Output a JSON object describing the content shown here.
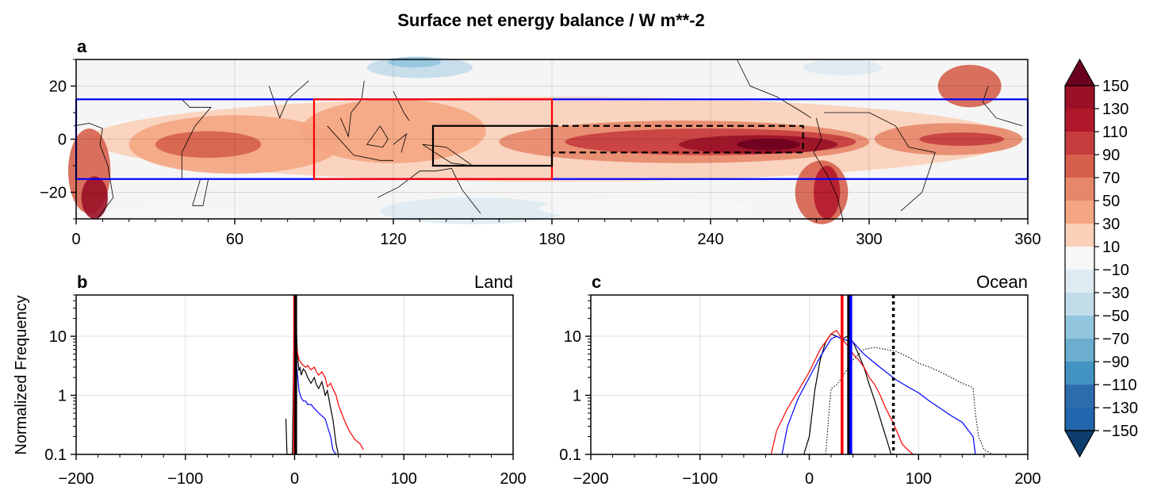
{
  "figure": {
    "title": "Surface net energy balance / W m**-2"
  },
  "chart_data": [
    {
      "panel": "a",
      "type": "heatmap",
      "xlim": [
        0,
        360
      ],
      "ylim": [
        -30,
        30
      ],
      "xticks": [
        0,
        60,
        120,
        180,
        240,
        300,
        360
      ],
      "xtick_labels": [
        "0",
        "60",
        "120",
        "180",
        "240",
        "300",
        "360"
      ],
      "yticks": [
        20,
        0,
        -20
      ],
      "ytick_labels": [
        "20",
        "0",
        "−20"
      ],
      "boxes": [
        {
          "name": "tropical-band",
          "lon": [
            0,
            360
          ],
          "lat": [
            -15,
            15
          ],
          "color": "#0000ff",
          "style": "solid"
        },
        {
          "name": "warm-pool",
          "lon": [
            90,
            180
          ],
          "lat": [
            -15,
            15
          ],
          "color": "#ff0000",
          "style": "solid"
        },
        {
          "name": "west-box",
          "lon": [
            135,
            180
          ],
          "lat": [
            -10,
            5
          ],
          "color": "#000000",
          "style": "solid"
        },
        {
          "name": "east-box",
          "lon": [
            180,
            275
          ],
          "lat": [
            -5,
            5
          ],
          "color": "#000000",
          "style": "dashed"
        }
      ],
      "field_features": [
        {
          "lon": 260,
          "lat": -2,
          "value": 150
        },
        {
          "lon": 330,
          "lat": 0,
          "value": 90
        },
        {
          "lon": 50,
          "lat": -2,
          "value": 70
        },
        {
          "lon": 5,
          "lat": -10,
          "value": 110
        },
        {
          "lon": 150,
          "lat": -25,
          "value": -30
        },
        {
          "lon": 130,
          "lat": 28,
          "value": -70
        }
      ]
    },
    {
      "panel": "b",
      "subtitle": "Land",
      "type": "line",
      "xlim": [
        -200,
        200
      ],
      "ylim": [
        0.1,
        50
      ],
      "yscale": "log",
      "xticks": [
        -200,
        -100,
        0,
        100,
        200
      ],
      "xtick_labels": [
        "−200",
        "−100",
        "0",
        "100",
        "200"
      ],
      "yticks": [
        10,
        1,
        0.1
      ],
      "ytick_labels": [
        "10",
        "1",
        "0.1"
      ],
      "ylabel": "Normalized Frequency",
      "series": [
        {
          "name": "black",
          "color": "#000000",
          "x": [
            -8,
            -7,
            -2,
            0,
            1,
            2,
            3,
            4,
            5,
            6,
            8,
            10,
            12,
            15,
            18,
            20,
            22,
            25,
            28,
            30,
            33,
            35,
            38,
            40
          ],
          "y": [
            0.4,
            0.1,
            0.1,
            50,
            30,
            8,
            4,
            2.6,
            3,
            2.2,
            2.8,
            2.5,
            2,
            1.6,
            2,
            1.5,
            1.3,
            1.7,
            1,
            1.2,
            0.6,
            0.4,
            0.15,
            0.1
          ]
        },
        {
          "name": "red",
          "color": "#ff0000",
          "x": [
            0,
            1,
            2,
            4,
            6,
            8,
            10,
            12,
            15,
            18,
            20,
            22,
            25,
            28,
            30,
            33,
            35,
            38,
            40,
            43,
            45,
            48,
            50,
            55,
            60,
            63
          ],
          "y": [
            50,
            30,
            6,
            4,
            3.5,
            3.2,
            3,
            3.2,
            2.7,
            3,
            2.5,
            2.2,
            2.5,
            2,
            1.4,
            1.6,
            1.3,
            1,
            0.7,
            0.5,
            0.4,
            0.3,
            0.25,
            0.18,
            0.15,
            0.12
          ]
        },
        {
          "name": "blue",
          "color": "#0000ff",
          "x": [
            0,
            2,
            4,
            6,
            8,
            10,
            12,
            15,
            18,
            20,
            22,
            25,
            28,
            30,
            33,
            35,
            38
          ],
          "y": [
            50,
            3,
            1.2,
            0.9,
            0.8,
            0.8,
            0.7,
            0.7,
            0.6,
            0.55,
            0.5,
            0.45,
            0.4,
            0.3,
            0.2,
            0.12,
            0.1
          ]
        }
      ],
      "vlines": [
        {
          "x": 0,
          "color": "#ff0000",
          "style": "solid"
        },
        {
          "x": 1,
          "color": "#000000",
          "style": "solid"
        }
      ]
    },
    {
      "panel": "c",
      "subtitle": "Ocean",
      "type": "line",
      "xlim": [
        -200,
        200
      ],
      "ylim": [
        0.1,
        50
      ],
      "yscale": "log",
      "xticks": [
        -200,
        -100,
        0,
        100,
        200
      ],
      "xtick_labels": [
        "−200",
        "−100",
        "0",
        "100",
        "200"
      ],
      "yticks": [
        10,
        1,
        0.1
      ],
      "ytick_labels": [
        "10",
        "1",
        "0.1"
      ],
      "series": [
        {
          "name": "black",
          "color": "#000000",
          "style": "solid",
          "x": [
            -5,
            0,
            5,
            10,
            15,
            20,
            25,
            30,
            35,
            40,
            45,
            50,
            55,
            60,
            65,
            70,
            75
          ],
          "y": [
            0.1,
            0.2,
            1.2,
            4,
            8,
            11,
            10,
            9,
            10,
            8,
            5,
            3,
            1.5,
            0.8,
            0.4,
            0.2,
            0.1
          ]
        },
        {
          "name": "red",
          "color": "#ff0000",
          "style": "solid",
          "x": [
            -35,
            -30,
            -20,
            -10,
            0,
            10,
            20,
            25,
            30,
            35,
            40,
            45,
            50,
            55,
            60,
            65,
            70,
            75,
            80,
            85,
            90,
            95
          ],
          "y": [
            0.1,
            0.25,
            0.6,
            1.2,
            2.5,
            6,
            11,
            12.5,
            9,
            7,
            5,
            4,
            3,
            2,
            1.5,
            1,
            0.6,
            0.4,
            0.25,
            0.15,
            0.12,
            0.1
          ]
        },
        {
          "name": "blue",
          "color": "#0000ff",
          "style": "solid",
          "x": [
            -25,
            -20,
            -10,
            0,
            10,
            20,
            25,
            30,
            40,
            50,
            60,
            70,
            80,
            90,
            100,
            110,
            120,
            130,
            140,
            150,
            152
          ],
          "y": [
            0.1,
            0.3,
            0.9,
            2,
            4.5,
            9,
            10,
            9,
            8,
            5,
            3.5,
            2.5,
            1.8,
            1.4,
            1.1,
            0.8,
            0.6,
            0.45,
            0.35,
            0.2,
            0.1
          ]
        },
        {
          "name": "black-dotted",
          "color": "#000000",
          "style": "dotted",
          "x": [
            15,
            18,
            20,
            25,
            30,
            40,
            50,
            60,
            70,
            80,
            90,
            100,
            110,
            120,
            130,
            140,
            148,
            150,
            152,
            155,
            160,
            168
          ],
          "y": [
            0.1,
            0.5,
            1.3,
            1.5,
            2,
            4,
            6,
            6.5,
            6,
            5.5,
            4.5,
            3.5,
            3,
            2.5,
            2,
            1.6,
            1.4,
            1.3,
            0.5,
            0.2,
            0.12,
            0.1
          ]
        }
      ],
      "vlines": [
        {
          "x": 30,
          "color": "#ff0000",
          "style": "solid"
        },
        {
          "x": 36,
          "color": "#000000",
          "style": "solid"
        },
        {
          "x": 38,
          "color": "#0000ff",
          "style": "solid"
        },
        {
          "x": 77,
          "color": "#000000",
          "style": "dotted"
        }
      ]
    }
  ],
  "colorbar": {
    "levels": [
      150,
      130,
      110,
      90,
      70,
      50,
      30,
      10,
      -10,
      -30,
      -50,
      -70,
      -90,
      -110,
      -130,
      -150
    ],
    "labels": [
      "150",
      "130",
      "110",
      "90",
      "70",
      "50",
      "30",
      "10",
      "−10",
      "−30",
      "−50",
      "−70",
      "−90",
      "−110",
      "−130",
      "−150"
    ],
    "colors": [
      "#6b001f",
      "#9a1127",
      "#b2182b",
      "#c63d3e",
      "#d6604d",
      "#e7876a",
      "#f4a582",
      "#fbd0b9",
      "#f7f7f7",
      "#deebf2",
      "#c3dcea",
      "#92c5de",
      "#6baed0",
      "#4393c3",
      "#2c6ead",
      "#2166ac",
      "#0d3e6e"
    ]
  }
}
